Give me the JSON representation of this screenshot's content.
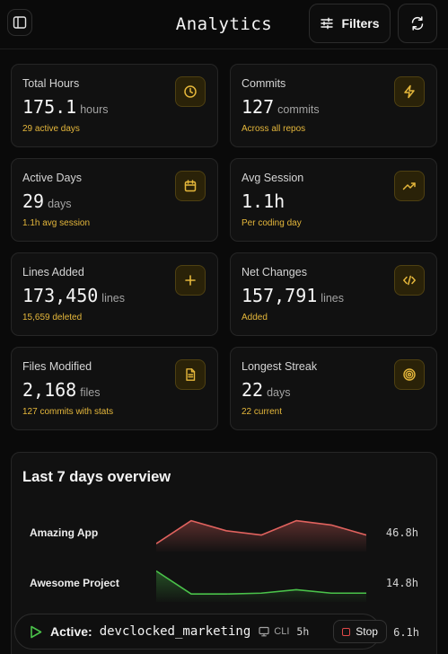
{
  "header": {
    "title": "Analytics",
    "filters_label": "Filters"
  },
  "stats": [
    {
      "label": "Total Hours",
      "value": "175.1",
      "unit": "hours",
      "sub": "29 active days",
      "icon": "clock-icon"
    },
    {
      "label": "Commits",
      "value": "127",
      "unit": "commits",
      "sub": "Across all repos",
      "icon": "lightning-icon"
    },
    {
      "label": "Active Days",
      "value": "29",
      "unit": "days",
      "sub": "1.1h avg session",
      "icon": "calendar-icon"
    },
    {
      "label": "Avg Session",
      "value": "1.1h",
      "unit": "",
      "sub": "Per coding day",
      "icon": "trend-up-icon"
    },
    {
      "label": "Lines Added",
      "value": "173,450",
      "unit": "lines",
      "sub": "15,659 deleted",
      "icon": "plus-icon"
    },
    {
      "label": "Net Changes",
      "value": "157,791",
      "unit": "lines",
      "sub": "Added",
      "icon": "code-icon"
    },
    {
      "label": "Files Modified",
      "value": "2,168",
      "unit": "files",
      "sub": "127 commits with stats",
      "icon": "file-icon"
    },
    {
      "label": "Longest Streak",
      "value": "22",
      "unit": "days",
      "sub": "22 current",
      "icon": "target-icon"
    }
  ],
  "overview": {
    "title": "Last 7 days overview",
    "projects": [
      {
        "name": "Amazing App",
        "hours": "46.8h",
        "color": "#e0625e",
        "trend": [
          0.15,
          0.95,
          0.6,
          0.45,
          0.95,
          0.8,
          0.45
        ]
      },
      {
        "name": "Awesome Project",
        "hours": "14.8h",
        "color": "#4ac24a",
        "trend": [
          0.95,
          0.15,
          0.15,
          0.18,
          0.3,
          0.18,
          0.18
        ]
      }
    ],
    "hidden_row_hours": "6.1h"
  },
  "active_session": {
    "label": "Active:",
    "project": "devclocked_marketing",
    "source": "CLI",
    "duration": "5h",
    "stop_label": "Stop"
  },
  "colors": {
    "accent": "#e5b73b",
    "background": "#0a0a0a",
    "card": "#111111",
    "stop": "#e04848",
    "play": "#4ac24a"
  }
}
